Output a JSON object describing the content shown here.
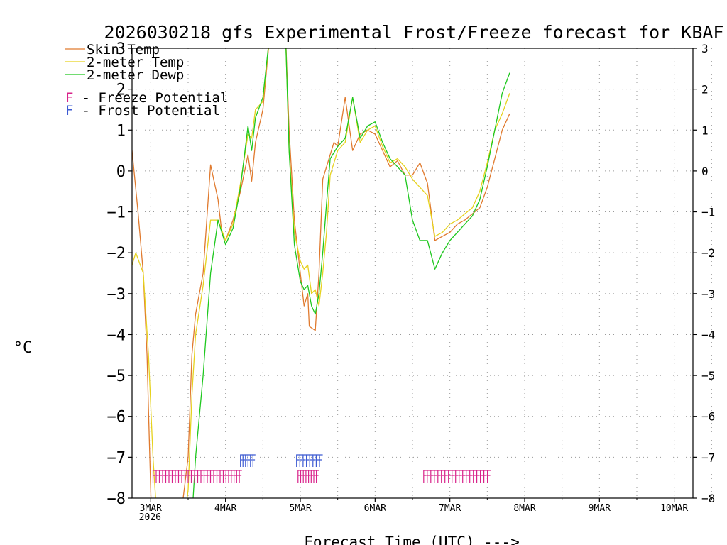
{
  "chart_data": {
    "type": "line",
    "title": "2026030218 gfs Experimental Frost/Freeze forecast for KBAF",
    "xlabel": "Forecast Time (UTC) --->",
    "ylabel": "°C",
    "ylim": [
      -8,
      3
    ],
    "xlim": [
      -0.25,
      7.25
    ],
    "yticks": [
      -8,
      -7,
      -6,
      -5,
      -4,
      -3,
      -2,
      -1,
      0,
      1,
      2,
      3
    ],
    "ytick_labels_left": [
      "−8",
      "−7",
      "−6",
      "−5",
      "−4",
      "−3",
      "−2",
      "−1",
      "0",
      "1",
      "2",
      "3"
    ],
    "ytick_labels_right": [
      "−8",
      "−7",
      "−6",
      "−5",
      "−4",
      "−3",
      "−2",
      "−1",
      "0",
      "1",
      "2",
      "3"
    ],
    "xticks": [
      {
        "day": 0,
        "label": "3MAR",
        "sub": "2026"
      },
      {
        "day": 1,
        "label": "4MAR",
        "sub": ""
      },
      {
        "day": 2,
        "label": "5MAR",
        "sub": ""
      },
      {
        "day": 3,
        "label": "6MAR",
        "sub": ""
      },
      {
        "day": 4,
        "label": "7MAR",
        "sub": ""
      },
      {
        "day": 5,
        "label": "8MAR",
        "sub": ""
      },
      {
        "day": 6,
        "label": "9MAR",
        "sub": ""
      },
      {
        "day": 7,
        "label": "10MAR",
        "sub": ""
      }
    ],
    "grid": true,
    "legend": {
      "position": "top-left",
      "entries": [
        {
          "name": "Skin Temp",
          "color": "#e07a2e"
        },
        {
          "name": "2-meter Temp",
          "color": "#e6d21e"
        },
        {
          "name": "2-meter Dewp",
          "color": "#1ec81e"
        }
      ],
      "markers": [
        {
          "symbol": "F",
          "text": " - Freeze Potential",
          "color": "#d8238a"
        },
        {
          "symbol": "F",
          "text": " - Frost Potential",
          "color": "#3c5ad2"
        }
      ]
    },
    "series": [
      {
        "name": "Skin Temp",
        "color": "#e07a2e",
        "x": [
          -0.25,
          -0.17,
          -0.1,
          -0.05,
          -0.02,
          0.01,
          0.1,
          0.2,
          0.3,
          0.4,
          0.5,
          0.55,
          0.6,
          0.7,
          0.8,
          0.9,
          0.95,
          1.0,
          1.1,
          1.2,
          1.3,
          1.35,
          1.4,
          1.5,
          1.6,
          1.7,
          1.8,
          1.85,
          1.92,
          2.0,
          2.05,
          2.1,
          2.12,
          2.2,
          2.25,
          2.3,
          2.4,
          2.45,
          2.5,
          2.6,
          2.7,
          2.8,
          2.9,
          3.0,
          3.1,
          3.2,
          3.3,
          3.4,
          3.5,
          3.6,
          3.7,
          3.8,
          3.9,
          3.95,
          4.0,
          4.1,
          4.2,
          4.3,
          4.4,
          4.5,
          4.6,
          4.7,
          4.8
        ],
        "y": [
          0.5,
          -1.0,
          -2.5,
          -4.5,
          -6.5,
          -8.5,
          -9.5,
          -9.8,
          -9.5,
          -8.5,
          -7.0,
          -4.5,
          -3.5,
          -2.5,
          0.15,
          -0.7,
          -1.5,
          -1.7,
          -1.2,
          -0.5,
          0.4,
          -0.25,
          0.7,
          1.5,
          3.5,
          3.5,
          3.5,
          1.0,
          -1.2,
          -2.5,
          -3.3,
          -3.0,
          -3.8,
          -3.9,
          -2.5,
          -0.2,
          0.4,
          0.7,
          0.6,
          1.8,
          0.5,
          0.9,
          1.0,
          0.9,
          0.5,
          0.1,
          0.25,
          -0.1,
          -0.1,
          0.2,
          -0.3,
          -1.7,
          -1.6,
          -1.55,
          -1.5,
          -1.3,
          -1.2,
          -1.05,
          -0.9,
          -0.4,
          0.3,
          1.0,
          1.4
        ]
      },
      {
        "name": "2-meter Temp",
        "color": "#e6d21e",
        "x": [
          -0.25,
          -0.2,
          -0.1,
          -0.03,
          0.03,
          0.1,
          0.2,
          0.3,
          0.4,
          0.5,
          0.55,
          0.6,
          0.7,
          0.8,
          0.9,
          1.0,
          1.1,
          1.2,
          1.3,
          1.35,
          1.4,
          1.5,
          1.6,
          1.7,
          1.8,
          1.85,
          1.92,
          2.0,
          2.05,
          2.1,
          2.15,
          2.2,
          2.25,
          2.3,
          2.35,
          2.4,
          2.5,
          2.6,
          2.7,
          2.8,
          2.9,
          3.0,
          3.1,
          3.2,
          3.3,
          3.4,
          3.5,
          3.6,
          3.7,
          3.8,
          3.9,
          4.0,
          4.1,
          4.2,
          4.3,
          4.4,
          4.5,
          4.6,
          4.7,
          4.8
        ],
        "y": [
          -2.3,
          -2.0,
          -2.5,
          -4.5,
          -7.0,
          -9.0,
          -9.6,
          -9.7,
          -9.3,
          -7.8,
          -5.5,
          -4.0,
          -2.8,
          -1.2,
          -1.2,
          -1.7,
          -1.3,
          -0.3,
          0.9,
          0.8,
          1.5,
          1.7,
          3.5,
          3.5,
          3.5,
          0.5,
          -1.5,
          -2.2,
          -2.4,
          -2.3,
          -3.0,
          -2.9,
          -3.3,
          -2.5,
          -1.5,
          -0.1,
          0.5,
          0.7,
          1.8,
          0.7,
          1.0,
          1.1,
          0.6,
          0.2,
          0.3,
          0.1,
          -0.2,
          -0.4,
          -0.6,
          -1.6,
          -1.5,
          -1.3,
          -1.2,
          -1.05,
          -0.9,
          -0.5,
          0.2,
          1.0,
          1.4,
          1.9
        ]
      },
      {
        "name": "2-meter Dewp",
        "color": "#1ec81e",
        "x": [
          0.55,
          0.6,
          0.7,
          0.8,
          0.9,
          1.0,
          1.1,
          1.2,
          1.3,
          1.35,
          1.4,
          1.5,
          1.6,
          1.7,
          1.8,
          1.85,
          1.92,
          2.0,
          2.05,
          2.1,
          2.15,
          2.2,
          2.25,
          2.3,
          2.35,
          2.4,
          2.5,
          2.6,
          2.7,
          2.8,
          2.9,
          3.0,
          3.1,
          3.2,
          3.3,
          3.4,
          3.5,
          3.6,
          3.7,
          3.8,
          3.9,
          4.0,
          4.1,
          4.2,
          4.3,
          4.4,
          4.5,
          4.6,
          4.7,
          4.8
        ],
        "y": [
          -8.5,
          -7.0,
          -5.0,
          -2.5,
          -1.2,
          -1.8,
          -1.4,
          -0.4,
          1.1,
          0.5,
          1.3,
          1.8,
          3.5,
          3.5,
          3.5,
          0.5,
          -1.8,
          -2.7,
          -2.9,
          -2.8,
          -3.3,
          -3.5,
          -3.0,
          -2.0,
          -0.8,
          0.3,
          0.6,
          0.8,
          1.8,
          0.8,
          1.1,
          1.2,
          0.7,
          0.3,
          0.1,
          -0.1,
          -1.2,
          -1.7,
          -1.7,
          -2.4,
          -2.0,
          -1.7,
          -1.5,
          -1.3,
          -1.1,
          -0.7,
          0.1,
          1.0,
          1.9,
          2.4
        ]
      }
    ],
    "freeze_markers": [
      {
        "x_start": 0.03,
        "x_end": 0.97,
        "count": 22
      },
      {
        "x_start": 0.97,
        "x_end": 1.22,
        "count": 7
      },
      {
        "x_start": 1.97,
        "x_end": 2.25,
        "count": 8
      },
      {
        "x_start": 3.65,
        "x_end": 4.55,
        "count": 19
      }
    ],
    "frost_markers": [
      {
        "x_start": 1.2,
        "x_end": 1.4,
        "count": 6
      },
      {
        "x_start": 1.95,
        "x_end": 2.3,
        "count": 8
      }
    ]
  }
}
